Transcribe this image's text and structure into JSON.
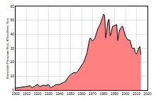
{
  "chart_data": {
    "type": "area",
    "y_label": "Marketable Phosphate Rock, Million Metric Tons",
    "x": [
      1900,
      1905,
      1910,
      1913,
      1915,
      1917,
      1920,
      1922,
      1925,
      1927,
      1930,
      1932,
      1935,
      1937,
      1940,
      1943,
      1945,
      1948,
      1950,
      1953,
      1955,
      1957,
      1960,
      1962,
      1965,
      1967,
      1968,
      1970,
      1972,
      1974,
      1975,
      1977,
      1978,
      1980,
      1981,
      1982,
      1984,
      1985,
      1986,
      1987,
      1988,
      1990,
      1992,
      1993,
      1994,
      1995,
      1997,
      1998,
      2000,
      2002,
      2004,
      2006,
      2007,
      2008,
      2009,
      2010,
      2011,
      2012,
      2013,
      2014
    ],
    "values": [
      1.5,
      1.9,
      2.6,
      3.1,
      1.8,
      2.6,
      4.1,
      2.4,
      3.5,
      3.2,
      3.9,
      1.7,
      3.3,
      4.0,
      4.0,
      5.4,
      5.8,
      9.4,
      11.1,
      12.6,
      12.3,
      13.9,
      17.8,
      19.8,
      26.8,
      35.4,
      37.4,
      35.1,
      37.0,
      41.4,
      44.3,
      47.3,
      50.0,
      54.4,
      53.6,
      37.4,
      49.2,
      50.8,
      38.7,
      40.9,
      45.4,
      46.3,
      47.0,
      35.5,
      41.1,
      43.7,
      45.9,
      44.2,
      38.6,
      36.1,
      35.8,
      30.1,
      29.7,
      30.2,
      26.4,
      25.8,
      28.1,
      30.1,
      31.2,
      25.3
    ],
    "color": "#ff8080",
    "xlim": [
      1900,
      2020
    ],
    "xticks": [
      1900,
      1910,
      1920,
      1930,
      1940,
      1950,
      1960,
      1970,
      1980,
      1990,
      2000,
      2010,
      2020
    ],
    "ylim": [
      0,
      60
    ],
    "yticks": [
      0,
      10,
      20,
      30,
      40,
      50,
      60
    ],
    "grid": true
  }
}
